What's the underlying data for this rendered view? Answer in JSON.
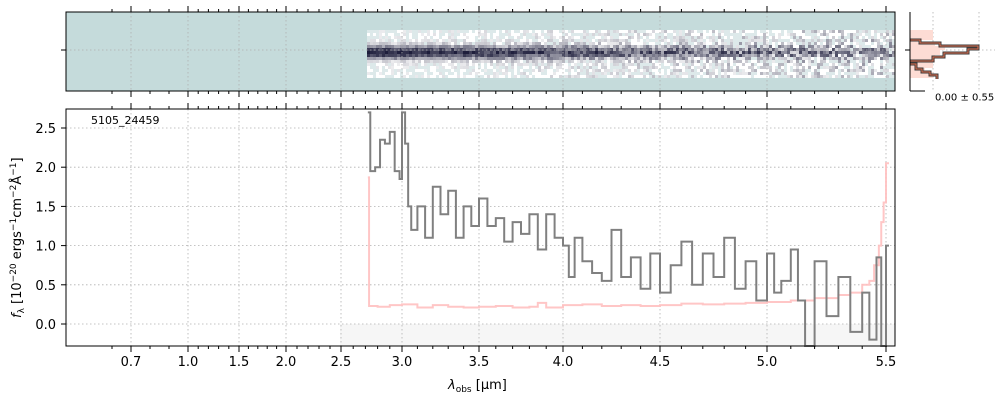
{
  "chart_data": {
    "type": "line",
    "title": "",
    "annotation": "5105_24459",
    "xlabel_main": "λ",
    "xlabel_sub": "obs",
    "xlabel_unit": " [μm]",
    "ylabel": "f_λ [10^-20 ergs^-1 cm^-2 Å^-1]",
    "ylabel_parts": {
      "f": "f",
      "lam": "λ",
      "a": " [10",
      "e1": "−20",
      "b": " ergs",
      "e2": "−1",
      "c": "cm",
      "e3": "−2",
      "d": "Å",
      "e4": "−1",
      "end": "]"
    },
    "xticks": [
      "0.7",
      "1.0",
      "1.5",
      "2.0",
      "2.5",
      "3.0",
      "3.5",
      "4.0",
      "4.5",
      "5.0",
      "5.5"
    ],
    "yticks": [
      "0.0",
      "0.5",
      "1.0",
      "1.5",
      "2.0",
      "2.5"
    ],
    "ylim": [
      -0.28,
      2.74
    ],
    "xlim": [
      0.55,
      5.52
    ],
    "grid": true,
    "series": [
      {
        "name": "flux",
        "color": "#808080",
        "x": [
          2.72,
          2.74,
          2.78,
          2.82,
          2.86,
          2.9,
          2.94,
          2.98,
          3.0,
          3.02,
          3.04,
          3.06,
          3.1,
          3.15,
          3.2,
          3.25,
          3.3,
          3.35,
          3.4,
          3.45,
          3.5,
          3.55,
          3.6,
          3.65,
          3.7,
          3.75,
          3.8,
          3.85,
          3.9,
          3.95,
          4.0,
          4.03,
          4.06,
          4.1,
          4.15,
          4.2,
          4.25,
          4.3,
          4.35,
          4.4,
          4.45,
          4.5,
          4.55,
          4.6,
          4.65,
          4.7,
          4.75,
          4.8,
          4.85,
          4.9,
          4.95,
          5.0,
          5.03,
          5.06,
          5.1,
          5.13,
          5.16,
          5.2,
          5.25,
          5.3,
          5.35,
          5.4,
          5.43,
          5.46,
          5.48,
          5.5
        ],
        "y": [
          2.7,
          1.95,
          2.0,
          2.35,
          2.3,
          2.45,
          1.95,
          1.85,
          2.7,
          2.3,
          1.5,
          1.2,
          1.5,
          1.1,
          1.75,
          1.4,
          1.7,
          1.1,
          1.5,
          1.25,
          1.6,
          1.25,
          1.35,
          1.05,
          1.3,
          1.15,
          1.4,
          0.95,
          1.4,
          1.1,
          1.0,
          0.6,
          1.1,
          0.8,
          0.65,
          0.55,
          1.2,
          0.6,
          0.85,
          0.45,
          0.9,
          0.4,
          0.75,
          1.05,
          0.5,
          0.9,
          0.6,
          1.1,
          0.45,
          0.8,
          0.3,
          0.9,
          0.4,
          0.55,
          0.95,
          0.3,
          -0.3,
          0.8,
          0.1,
          0.6,
          -0.1,
          0.4,
          -0.2,
          0.85,
          -0.3,
          1.0
        ]
      },
      {
        "name": "error",
        "color": "#ffc0c0",
        "x": [
          2.72,
          2.73,
          2.8,
          2.9,
          3.0,
          3.1,
          3.2,
          3.3,
          3.4,
          3.5,
          3.6,
          3.7,
          3.8,
          3.85,
          3.9,
          4.0,
          4.1,
          4.2,
          4.3,
          4.4,
          4.5,
          4.6,
          4.7,
          4.8,
          4.9,
          5.0,
          5.1,
          5.2,
          5.3,
          5.35,
          5.4,
          5.43,
          5.45,
          5.47,
          5.48,
          5.49,
          5.5
        ],
        "y": [
          1.87,
          0.23,
          0.22,
          0.24,
          0.25,
          0.21,
          0.24,
          0.22,
          0.21,
          0.22,
          0.23,
          0.21,
          0.22,
          0.27,
          0.21,
          0.24,
          0.25,
          0.23,
          0.24,
          0.23,
          0.24,
          0.26,
          0.25,
          0.26,
          0.27,
          0.28,
          0.3,
          0.33,
          0.37,
          0.4,
          0.5,
          0.55,
          0.75,
          1.0,
          1.3,
          1.55,
          2.05
        ]
      }
    ],
    "side_panel": {
      "label": "0.00 ± 0.55"
    }
  }
}
